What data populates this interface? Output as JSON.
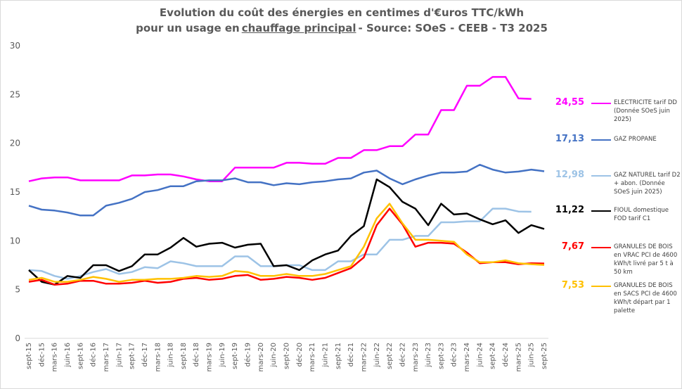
{
  "chart_data": {
    "type": "line",
    "title": "Evolution du coût des énergies en centimes d'€uros TTC/kWh",
    "subtitle": {
      "before": "pour un usage en",
      "underlined": "chauffage principal",
      "after": "- Source: SOeS - CEEB - T3 2025"
    },
    "categories": [
      "sept-15",
      "déc-15",
      "mars-16",
      "juin-16",
      "sept-16",
      "déc-16",
      "mars-17",
      "juin-17",
      "sept-17",
      "déc-17",
      "mars-18",
      "juin-18",
      "sept-18",
      "déc-18",
      "mars-19",
      "juin-19",
      "sept-19",
      "déc-19",
      "mars-20",
      "juin-20",
      "sept-20",
      "déc-20",
      "mars-21",
      "juin-21",
      "sept-21",
      "déc-21",
      "mars-22",
      "juin-22",
      "sept-22",
      "déc-22",
      "mars-23",
      "juin-23",
      "sept-23",
      "déc-23",
      "mars-24",
      "juin-24",
      "sept-24",
      "déc-24",
      "mars-25",
      "juin-25",
      "sept-25"
    ],
    "ylim": [
      0,
      30
    ],
    "yticks": [
      0,
      5,
      10,
      15,
      20,
      25,
      30
    ],
    "grid": false,
    "series": [
      {
        "name": "ELECTRICITE tarif DD (Donnée SOeS juin 2025)",
        "color": "#ff00ff",
        "values": [
          16.1,
          16.4,
          16.5,
          16.5,
          16.2,
          16.2,
          16.2,
          16.2,
          16.7,
          16.7,
          16.8,
          16.8,
          16.6,
          16.3,
          16.1,
          16.1,
          17.5,
          17.5,
          17.5,
          17.5,
          18.0,
          18.0,
          17.9,
          17.9,
          18.5,
          18.5,
          19.3,
          19.3,
          19.7,
          19.7,
          20.9,
          20.9,
          23.4,
          23.4,
          25.9,
          25.9,
          26.8,
          26.8,
          24.6,
          24.55,
          null
        ],
        "value_labels": [
          null,
          null,
          null,
          null,
          null,
          null,
          null,
          null,
          null,
          null,
          null,
          null,
          null,
          null,
          null,
          null,
          null,
          null,
          null,
          null,
          null,
          null,
          null,
          null,
          null,
          null,
          null,
          null,
          null,
          null,
          null,
          null,
          null,
          null,
          null,
          null,
          null,
          null,
          null,
          "24,55",
          null
        ]
      },
      {
        "name": "GAZ PROPANE",
        "color": "#4472c4",
        "values": [
          13.6,
          13.2,
          13.1,
          12.9,
          12.6,
          12.6,
          13.6,
          13.9,
          14.3,
          15.0,
          15.2,
          15.6,
          15.6,
          16.1,
          16.2,
          16.2,
          16.4,
          16.0,
          16.0,
          15.7,
          15.9,
          15.8,
          16.0,
          16.1,
          16.3,
          16.4,
          17.0,
          17.2,
          16.4,
          15.8,
          16.3,
          16.7,
          17.0,
          17.0,
          17.1,
          17.8,
          17.3,
          17.0,
          17.1,
          17.3,
          17.13
        ],
        "value_labels": [
          null,
          null,
          null,
          null,
          null,
          null,
          null,
          null,
          null,
          null,
          null,
          null,
          null,
          null,
          null,
          null,
          null,
          null,
          null,
          null,
          null,
          null,
          null,
          null,
          null,
          null,
          null,
          null,
          null,
          null,
          null,
          null,
          null,
          null,
          null,
          null,
          null,
          null,
          null,
          null,
          "17,13"
        ]
      },
      {
        "name": "GAZ NATUREL tarif D2 + abon. (Donnée SOeS juin 2025)",
        "color": "#9dc3e6",
        "values": [
          7.0,
          6.9,
          6.4,
          6.1,
          6.4,
          6.8,
          7.1,
          6.6,
          6.8,
          7.3,
          7.2,
          7.9,
          7.7,
          7.4,
          7.4,
          7.4,
          8.4,
          8.4,
          7.4,
          7.4,
          7.5,
          7.5,
          7.0,
          7.0,
          7.9,
          7.9,
          8.6,
          8.6,
          10.1,
          10.1,
          10.5,
          10.5,
          11.9,
          11.9,
          12.0,
          12.0,
          13.3,
          13.3,
          13.0,
          12.98,
          null
        ],
        "value_labels": [
          null,
          null,
          null,
          null,
          null,
          null,
          null,
          null,
          null,
          null,
          null,
          null,
          null,
          null,
          null,
          null,
          null,
          null,
          null,
          null,
          null,
          null,
          null,
          null,
          null,
          null,
          null,
          null,
          null,
          null,
          null,
          null,
          null,
          null,
          null,
          null,
          null,
          null,
          null,
          "12,98",
          null
        ]
      },
      {
        "name": "FIOUL domestique FOD tarif C1",
        "color": "#000000",
        "values": [
          7.0,
          5.8,
          5.5,
          6.4,
          6.2,
          7.5,
          7.5,
          6.9,
          7.4,
          8.6,
          8.6,
          9.3,
          10.3,
          9.4,
          9.7,
          9.8,
          9.3,
          9.6,
          9.7,
          7.4,
          7.5,
          7.0,
          8.0,
          8.6,
          9.0,
          10.5,
          11.5,
          16.3,
          15.5,
          14.0,
          13.3,
          11.6,
          13.8,
          12.7,
          12.8,
          12.2,
          11.7,
          12.1,
          10.8,
          11.6,
          11.22
        ],
        "value_labels": [
          null,
          null,
          null,
          null,
          null,
          null,
          null,
          null,
          null,
          null,
          null,
          null,
          null,
          null,
          null,
          null,
          null,
          null,
          null,
          null,
          null,
          null,
          null,
          null,
          null,
          null,
          null,
          null,
          null,
          null,
          null,
          null,
          null,
          null,
          null,
          null,
          null,
          null,
          null,
          null,
          "11,22"
        ]
      },
      {
        "name": "GRANULES DE BOIS en VRAC  PCI de 4600 kWh/t livré par 5 t à 50 km",
        "color": "#ff0000",
        "values": [
          5.8,
          6.0,
          5.5,
          5.6,
          5.9,
          5.9,
          5.6,
          5.6,
          5.7,
          5.9,
          5.7,
          5.8,
          6.1,
          6.2,
          6.0,
          6.1,
          6.4,
          6.5,
          6.0,
          6.1,
          6.3,
          6.2,
          6.0,
          6.2,
          6.7,
          7.2,
          8.3,
          11.6,
          13.3,
          11.7,
          9.4,
          9.8,
          9.8,
          9.7,
          8.8,
          7.7,
          7.8,
          7.8,
          7.6,
          7.7,
          7.67
        ],
        "value_labels": [
          null,
          null,
          null,
          null,
          null,
          null,
          null,
          null,
          null,
          null,
          null,
          null,
          null,
          null,
          null,
          null,
          null,
          null,
          null,
          null,
          null,
          null,
          null,
          null,
          null,
          null,
          null,
          null,
          null,
          null,
          null,
          null,
          null,
          null,
          null,
          null,
          null,
          null,
          null,
          null,
          "7,67"
        ]
      },
      {
        "name": "GRANULES DE BOIS en SACS PCI de 4600 kWh/t départ par 1 palette",
        "color": "#ffc000",
        "values": [
          6.0,
          6.2,
          5.8,
          5.8,
          6.0,
          6.3,
          6.1,
          5.8,
          6.0,
          6.0,
          6.1,
          6.1,
          6.2,
          6.4,
          6.3,
          6.4,
          6.9,
          6.8,
          6.4,
          6.4,
          6.6,
          6.4,
          6.4,
          6.6,
          7.0,
          7.4,
          9.4,
          12.3,
          13.8,
          11.8,
          10.1,
          10.1,
          10.0,
          9.9,
          8.6,
          7.8,
          7.8,
          8.0,
          7.7,
          7.6,
          7.53
        ],
        "value_labels": [
          null,
          null,
          null,
          null,
          null,
          null,
          null,
          null,
          null,
          null,
          null,
          null,
          null,
          null,
          null,
          null,
          null,
          null,
          null,
          null,
          null,
          null,
          null,
          null,
          null,
          null,
          null,
          null,
          null,
          null,
          null,
          null,
          null,
          null,
          null,
          null,
          null,
          null,
          null,
          null,
          "7,53"
        ]
      }
    ]
  }
}
